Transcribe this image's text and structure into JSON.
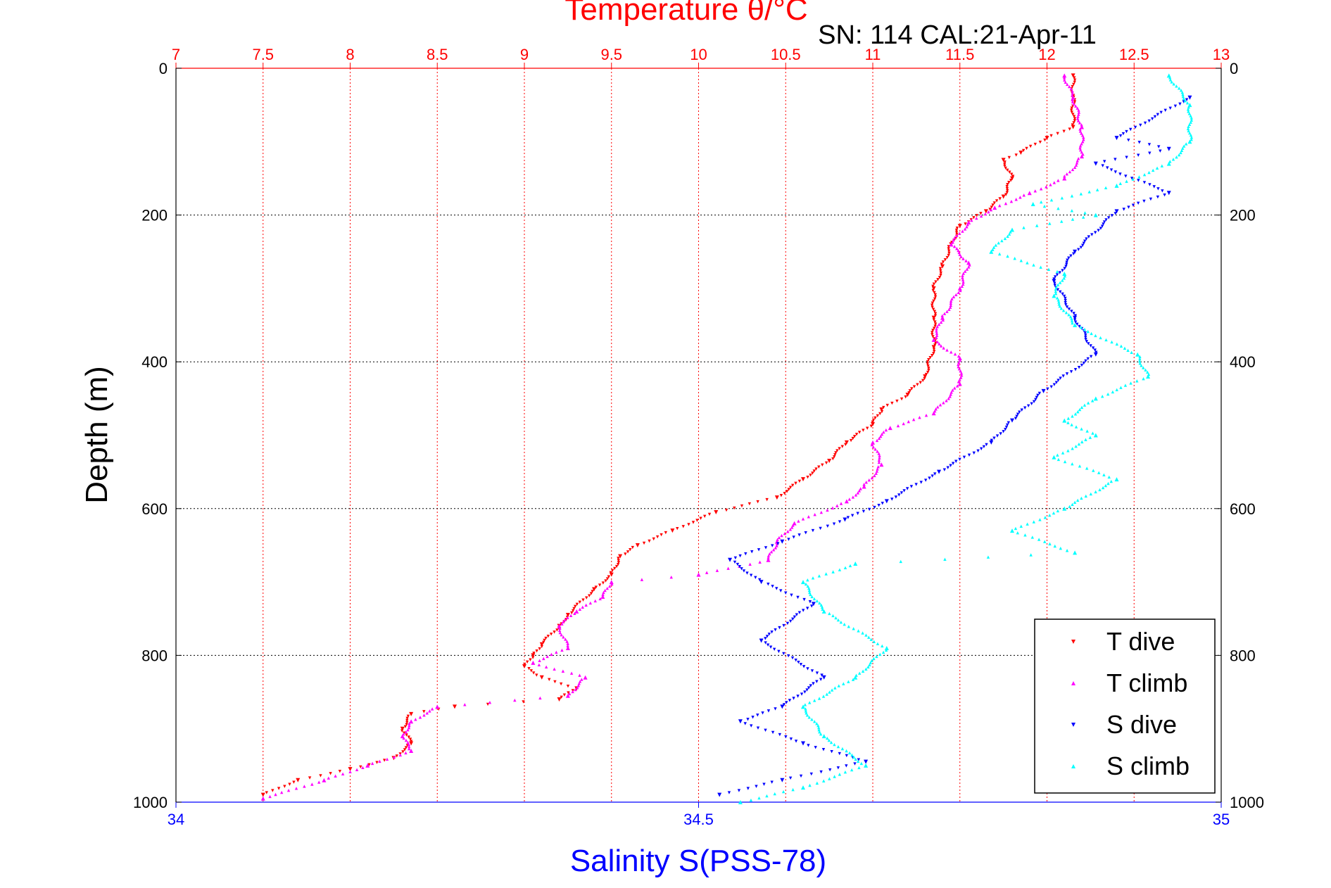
{
  "chart_data": {
    "type": "scatter",
    "title": "Temperature θ/°C",
    "subtitle": "SN: 114  CAL:21-Apr-11",
    "ylabel": "Depth (m)",
    "xlabel_top": "Temperature θ/°C",
    "xlabel_bottom": "Salinity S(PSS-78)",
    "ylim": [
      0,
      1000
    ],
    "y_reversed": true,
    "y_ticks": [
      0,
      200,
      400,
      600,
      800,
      1000
    ],
    "temperature_axis": {
      "range": [
        7,
        13
      ],
      "ticks": [
        7,
        7.5,
        8,
        8.5,
        9,
        9.5,
        10,
        10.5,
        11,
        11.5,
        12,
        12.5,
        13
      ],
      "color": "#ff0000"
    },
    "salinity_axis": {
      "range": [
        34,
        35
      ],
      "ticks": [
        34,
        34.5,
        35
      ],
      "color": "#0000ff"
    },
    "grid": true,
    "legend_position": "bottom-right",
    "series": [
      {
        "name": "T dive",
        "axis": "temperature",
        "color": "#ff0000",
        "marker": "triangle-down",
        "points": [
          [
            12.15,
            10
          ],
          [
            12.15,
            40
          ],
          [
            12.15,
            80
          ],
          [
            12.0,
            95
          ],
          [
            11.85,
            115
          ],
          [
            11.75,
            125
          ],
          [
            11.8,
            150
          ],
          [
            11.75,
            175
          ],
          [
            11.65,
            195
          ],
          [
            11.5,
            215
          ],
          [
            11.45,
            240
          ],
          [
            11.4,
            270
          ],
          [
            11.35,
            300
          ],
          [
            11.35,
            340
          ],
          [
            11.35,
            380
          ],
          [
            11.3,
            420
          ],
          [
            11.2,
            445
          ],
          [
            11.05,
            465
          ],
          [
            11.0,
            485
          ],
          [
            10.85,
            510
          ],
          [
            10.75,
            535
          ],
          [
            10.6,
            560
          ],
          [
            10.45,
            585
          ],
          [
            10.1,
            605
          ],
          [
            9.85,
            630
          ],
          [
            9.65,
            650
          ],
          [
            9.55,
            665
          ],
          [
            9.5,
            690
          ],
          [
            9.4,
            710
          ],
          [
            9.25,
            745
          ],
          [
            9.2,
            760
          ],
          [
            9.1,
            785
          ],
          [
            9.05,
            800
          ],
          [
            9.0,
            815
          ],
          [
            9.1,
            830
          ],
          [
            9.3,
            845
          ],
          [
            9.2,
            860
          ],
          [
            8.6,
            870
          ],
          [
            8.35,
            880
          ],
          [
            8.3,
            900
          ],
          [
            8.35,
            920
          ],
          [
            8.25,
            940
          ],
          [
            8.0,
            955
          ],
          [
            7.7,
            970
          ],
          [
            7.5,
            990
          ]
        ]
      },
      {
        "name": "T climb",
        "axis": "temperature",
        "color": "#ff00ff",
        "marker": "triangle-up",
        "points": [
          [
            12.1,
            10
          ],
          [
            12.15,
            40
          ],
          [
            12.2,
            80
          ],
          [
            12.2,
            120
          ],
          [
            12.1,
            150
          ],
          [
            11.9,
            170
          ],
          [
            11.7,
            190
          ],
          [
            11.55,
            210
          ],
          [
            11.45,
            240
          ],
          [
            11.55,
            265
          ],
          [
            11.5,
            300
          ],
          [
            11.4,
            340
          ],
          [
            11.35,
            370
          ],
          [
            11.5,
            395
          ],
          [
            11.5,
            430
          ],
          [
            11.35,
            470
          ],
          [
            11.1,
            490
          ],
          [
            11.0,
            510
          ],
          [
            11.05,
            540
          ],
          [
            10.95,
            570
          ],
          [
            10.85,
            590
          ],
          [
            10.55,
            620
          ],
          [
            10.45,
            645
          ],
          [
            10.4,
            670
          ],
          [
            10.0,
            690
          ],
          [
            9.5,
            700
          ],
          [
            9.45,
            720
          ],
          [
            9.3,
            740
          ],
          [
            9.2,
            760
          ],
          [
            9.25,
            790
          ],
          [
            9.05,
            810
          ],
          [
            9.35,
            830
          ],
          [
            9.25,
            855
          ],
          [
            8.5,
            870
          ],
          [
            8.35,
            890
          ],
          [
            8.3,
            910
          ],
          [
            8.35,
            930
          ],
          [
            8.1,
            950
          ],
          [
            7.85,
            970
          ],
          [
            7.5,
            995
          ]
        ]
      },
      {
        "name": "S dive",
        "axis": "salinity",
        "color": "#0000ff",
        "marker": "triangle-down",
        "points": [
          [
            34.97,
            40
          ],
          [
            34.9,
            95
          ],
          [
            34.95,
            110
          ],
          [
            34.88,
            130
          ],
          [
            34.95,
            170
          ],
          [
            34.9,
            195
          ],
          [
            34.86,
            250
          ],
          [
            34.84,
            290
          ],
          [
            34.86,
            340
          ],
          [
            34.88,
            390
          ],
          [
            34.83,
            440
          ],
          [
            34.8,
            480
          ],
          [
            34.78,
            510
          ],
          [
            34.73,
            550
          ],
          [
            34.68,
            590
          ],
          [
            34.64,
            615
          ],
          [
            34.58,
            645
          ],
          [
            34.53,
            670
          ],
          [
            34.56,
            700
          ],
          [
            34.61,
            730
          ],
          [
            34.56,
            780
          ],
          [
            34.62,
            830
          ],
          [
            34.58,
            870
          ],
          [
            34.54,
            890
          ],
          [
            34.6,
            920
          ],
          [
            34.66,
            945
          ],
          [
            34.58,
            970
          ],
          [
            34.52,
            990
          ]
        ]
      },
      {
        "name": "S climb",
        "axis": "salinity",
        "color": "#00ffff",
        "marker": "triangle-up",
        "points": [
          [
            34.95,
            10
          ],
          [
            34.97,
            50
          ],
          [
            34.97,
            100
          ],
          [
            34.95,
            130
          ],
          [
            34.9,
            160
          ],
          [
            34.82,
            185
          ],
          [
            34.88,
            200
          ],
          [
            34.8,
            220
          ],
          [
            34.78,
            250
          ],
          [
            34.85,
            280
          ],
          [
            34.84,
            310
          ],
          [
            34.86,
            350
          ],
          [
            34.92,
            390
          ],
          [
            34.93,
            420
          ],
          [
            34.88,
            450
          ],
          [
            34.85,
            480
          ],
          [
            34.88,
            500
          ],
          [
            34.84,
            530
          ],
          [
            34.9,
            560
          ],
          [
            34.85,
            600
          ],
          [
            34.8,
            630
          ],
          [
            34.86,
            660
          ],
          [
            34.65,
            675
          ],
          [
            34.6,
            700
          ],
          [
            34.62,
            740
          ],
          [
            34.68,
            790
          ],
          [
            34.65,
            830
          ],
          [
            34.6,
            870
          ],
          [
            34.62,
            910
          ],
          [
            34.66,
            950
          ],
          [
            34.6,
            980
          ],
          [
            34.54,
            1000
          ]
        ]
      }
    ]
  }
}
